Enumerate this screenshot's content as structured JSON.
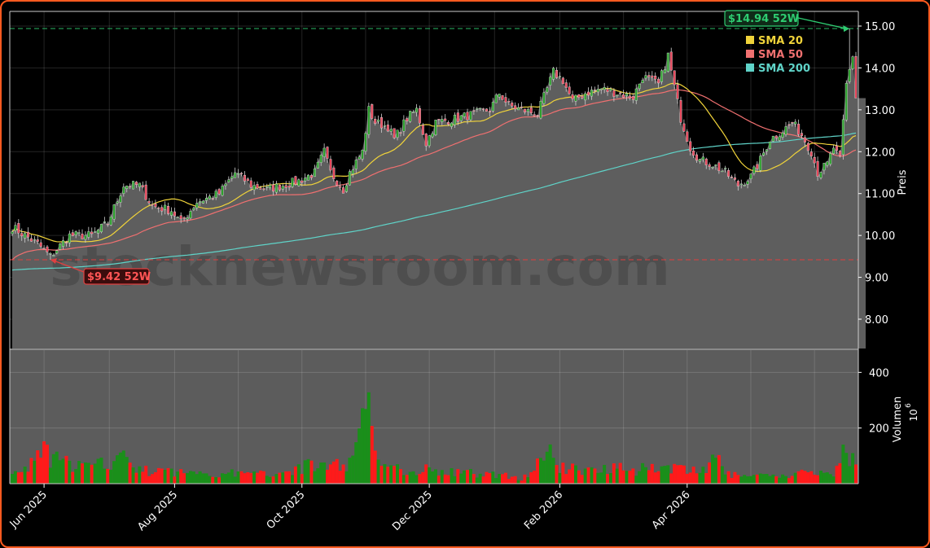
{
  "chart_data": {
    "type": "candlestick",
    "ylabel": "Preis",
    "volume_label": "Volumen",
    "volume_unit": "10",
    "volume_unit_exp": "6",
    "price_ylim": [
      7.3,
      15.35
    ],
    "volume_ylim": [
      0,
      480
    ],
    "price_ticks": [
      "8.00",
      "9.00",
      "10.00",
      "11.00",
      "12.00",
      "13.00",
      "14.00",
      "15.00"
    ],
    "volume_ticks": [
      "200",
      "400"
    ],
    "x_ticks": [
      "Jun 2025",
      "Aug 2025",
      "Oct 2025",
      "Dec 2025",
      "Feb 2026",
      "Apr 2026"
    ],
    "grid": true,
    "legend_position": "top-right",
    "legend": [
      {
        "name": "SMA 20",
        "color": "#f0d33a"
      },
      {
        "name": "SMA 50",
        "color": "#f07070"
      },
      {
        "name": "SMA 200",
        "color": "#5fd3c8"
      }
    ],
    "annotations": {
      "high_52w": {
        "label": "$14.94 52W",
        "value": 14.94
      },
      "low_52w": {
        "label": "$9.42 52W",
        "value": 9.42
      }
    },
    "watermark": "stocknewsroom.com",
    "close_anchors": [
      [
        0,
        10.2
      ],
      [
        8,
        9.8
      ],
      [
        12,
        9.5
      ],
      [
        18,
        10.0
      ],
      [
        25,
        10.0
      ],
      [
        30,
        10.3
      ],
      [
        35,
        11.2
      ],
      [
        40,
        11.2
      ],
      [
        44,
        10.7
      ],
      [
        50,
        10.6
      ],
      [
        53,
        10.3
      ],
      [
        58,
        10.8
      ],
      [
        65,
        11.0
      ],
      [
        70,
        11.5
      ],
      [
        75,
        11.2
      ],
      [
        80,
        11.1
      ],
      [
        85,
        11.2
      ],
      [
        90,
        11.3
      ],
      [
        95,
        11.5
      ],
      [
        98,
        12.0
      ],
      [
        100,
        11.5
      ],
      [
        104,
        11.1
      ],
      [
        106,
        11.5
      ],
      [
        110,
        12.0
      ],
      [
        112,
        13.0
      ],
      [
        114,
        12.7
      ],
      [
        118,
        12.6
      ],
      [
        120,
        12.3
      ],
      [
        124,
        12.8
      ],
      [
        127,
        13.0
      ],
      [
        130,
        12.2
      ],
      [
        133,
        12.7
      ],
      [
        140,
        12.8
      ],
      [
        145,
        12.9
      ],
      [
        150,
        13.0
      ],
      [
        153,
        13.4
      ],
      [
        156,
        13.1
      ],
      [
        160,
        13.0
      ],
      [
        165,
        12.9
      ],
      [
        170,
        13.9
      ],
      [
        173,
        13.7
      ],
      [
        176,
        13.2
      ],
      [
        180,
        13.4
      ],
      [
        185,
        13.5
      ],
      [
        190,
        13.4
      ],
      [
        195,
        13.3
      ],
      [
        198,
        13.8
      ],
      [
        203,
        13.6
      ],
      [
        206,
        14.3
      ],
      [
        210,
        12.8
      ],
      [
        213,
        12.1
      ],
      [
        216,
        11.8
      ],
      [
        220,
        11.7
      ],
      [
        224,
        11.5
      ],
      [
        228,
        11.2
      ],
      [
        232,
        11.4
      ],
      [
        235,
        11.8
      ],
      [
        238,
        12.3
      ],
      [
        242,
        12.5
      ],
      [
        245,
        12.7
      ],
      [
        248,
        12.4
      ],
      [
        251,
        12.0
      ],
      [
        253,
        11.5
      ],
      [
        256,
        11.7
      ],
      [
        258,
        12.1
      ],
      [
        260,
        11.8
      ],
      [
        262,
        13.6
      ],
      [
        264,
        14.3
      ],
      [
        265,
        13.3
      ]
    ],
    "volume_anchors": [
      [
        0,
        35
      ],
      [
        5,
        60
      ],
      [
        10,
        120
      ],
      [
        15,
        80
      ],
      [
        20,
        70
      ],
      [
        25,
        60
      ],
      [
        30,
        80
      ],
      [
        35,
        100
      ],
      [
        40,
        50
      ],
      [
        45,
        45
      ],
      [
        50,
        45
      ],
      [
        55,
        40
      ],
      [
        60,
        45
      ],
      [
        65,
        35
      ],
      [
        70,
        40
      ],
      [
        75,
        35
      ],
      [
        80,
        40
      ],
      [
        85,
        45
      ],
      [
        90,
        60
      ],
      [
        95,
        70
      ],
      [
        100,
        75
      ],
      [
        104,
        70
      ],
      [
        107,
        80
      ],
      [
        110,
        420
      ],
      [
        112,
        300
      ],
      [
        114,
        120
      ],
      [
        117,
        70
      ],
      [
        120,
        55
      ],
      [
        125,
        50
      ],
      [
        130,
        55
      ],
      [
        135,
        45
      ],
      [
        140,
        40
      ],
      [
        145,
        40
      ],
      [
        150,
        35
      ],
      [
        155,
        30
      ],
      [
        160,
        20
      ],
      [
        165,
        70
      ],
      [
        168,
        130
      ],
      [
        172,
        60
      ],
      [
        176,
        55
      ],
      [
        180,
        50
      ],
      [
        185,
        55
      ],
      [
        190,
        75
      ],
      [
        195,
        50
      ],
      [
        200,
        60
      ],
      [
        205,
        70
      ],
      [
        210,
        50
      ],
      [
        215,
        45
      ],
      [
        218,
        50
      ],
      [
        221,
        140
      ],
      [
        224,
        35
      ],
      [
        228,
        30
      ],
      [
        232,
        25
      ],
      [
        236,
        30
      ],
      [
        240,
        25
      ],
      [
        244,
        30
      ],
      [
        248,
        40
      ],
      [
        252,
        45
      ],
      [
        256,
        40
      ],
      [
        259,
        50
      ],
      [
        261,
        200
      ],
      [
        263,
        110
      ],
      [
        265,
        60
      ]
    ]
  }
}
